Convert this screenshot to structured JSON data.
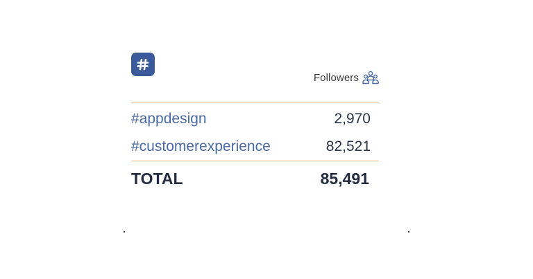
{
  "widget": {
    "badge_icon": "hashtag-icon",
    "header": {
      "label": "Followers",
      "icon": "people-group-icon",
      "accent_color": "#4a6aa3"
    },
    "rows": [
      {
        "tag": "#appdesign",
        "value": "2,970"
      },
      {
        "tag": "#customerexperience",
        "value": "82,521"
      }
    ],
    "total": {
      "label": "TOTAL",
      "value": "85,491"
    },
    "colors": {
      "badge": "#3a5a9b",
      "divider": "#f0b27a",
      "tag_text": "#4a6aa3",
      "value_text": "#2b3348"
    }
  }
}
